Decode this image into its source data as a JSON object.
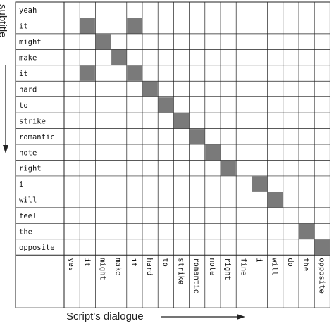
{
  "figure": {
    "y_axis_title": "subtitle",
    "x_axis_title": "Script's dialogue"
  },
  "chart_data": {
    "type": "heatmap",
    "rows": [
      "yeah",
      "it",
      "might",
      "make",
      "it",
      "hard",
      "to",
      "strike",
      "romantic",
      "note",
      "right",
      "i",
      "will",
      "feel",
      "the",
      "opposite"
    ],
    "columns": [
      "yes",
      "it",
      "might",
      "make",
      "it",
      "hard",
      "to",
      "strike",
      "romantic",
      "note",
      "right",
      "fine",
      "i",
      "will",
      "do",
      "the",
      "opposite"
    ],
    "matches": [
      [
        1,
        1
      ],
      [
        1,
        4
      ],
      [
        2,
        2
      ],
      [
        3,
        3
      ],
      [
        4,
        1
      ],
      [
        4,
        4
      ],
      [
        5,
        5
      ],
      [
        6,
        6
      ],
      [
        7,
        7
      ],
      [
        8,
        8
      ],
      [
        9,
        9
      ],
      [
        10,
        10
      ],
      [
        11,
        12
      ],
      [
        12,
        13
      ],
      [
        14,
        15
      ],
      [
        15,
        16
      ]
    ],
    "colors": {
      "match": "#7a7a7a",
      "grid": "#222222",
      "background": "#ffffff"
    }
  }
}
